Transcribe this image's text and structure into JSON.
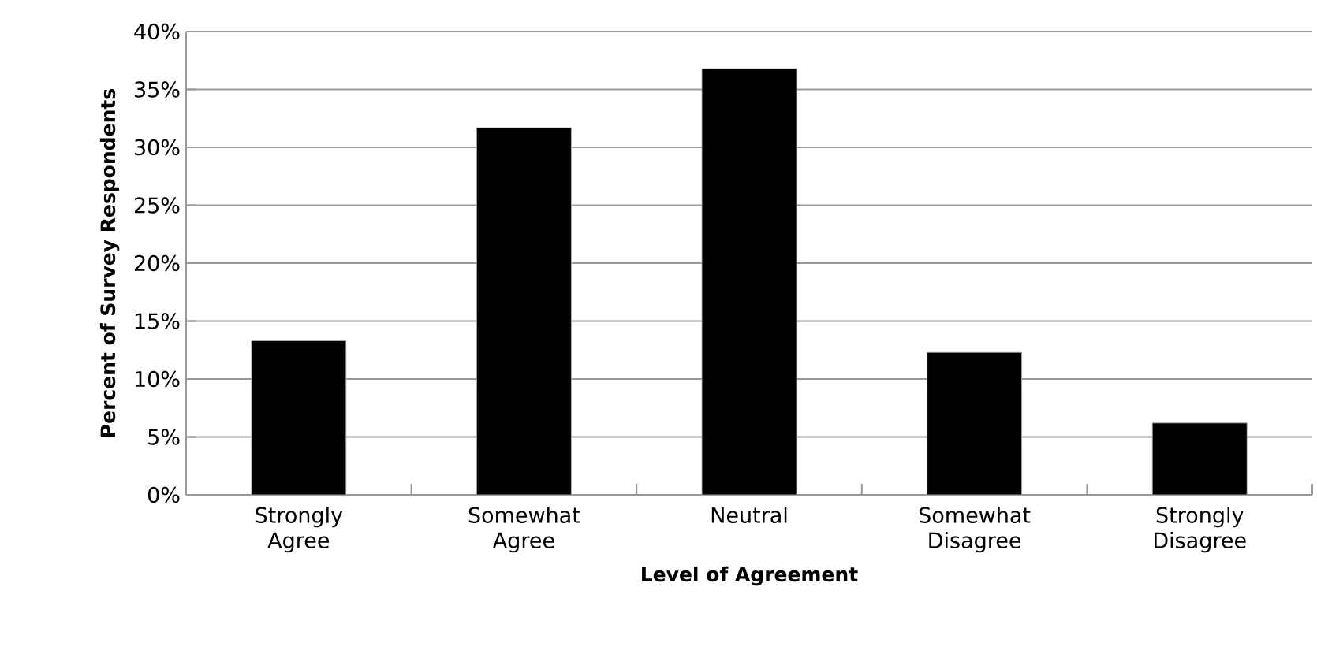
{
  "chart_data": {
    "type": "bar",
    "xlabel": "Level of Agreement",
    "ylabel": "Percent of Survey Respondents",
    "categories": [
      "Strongly Agree",
      "Somewhat Agree",
      "Neutral",
      "Somewhat Disagree",
      "Strongly Disagree"
    ],
    "values": [
      13.3,
      31.7,
      36.8,
      12.3,
      6.2
    ],
    "color": "#000000",
    "ylim": [
      0,
      40
    ],
    "yticks": [
      {
        "value": 0,
        "label": "0%"
      },
      {
        "value": 5,
        "label": "5%"
      },
      {
        "value": 10,
        "label": "10%"
      },
      {
        "value": 15,
        "label": "15%"
      },
      {
        "value": 20,
        "label": "20%"
      },
      {
        "value": 25,
        "label": "25%"
      },
      {
        "value": 30,
        "label": "30%"
      },
      {
        "value": 35,
        "label": "35%"
      },
      {
        "value": 40,
        "label": "40%"
      }
    ],
    "grid": "y"
  }
}
